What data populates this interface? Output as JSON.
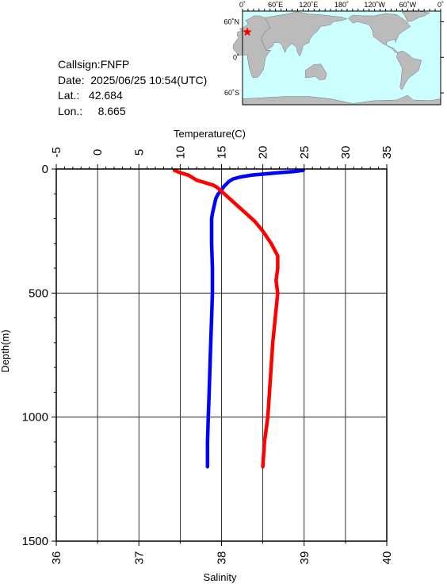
{
  "info": {
    "callsign_line": "Callsign:FNFP",
    "date_line": "Date:  2025/06/25 10:54(UTC)",
    "lat_line": "Lat.:   42.684",
    "lon_line": "Lon.:     8.665"
  },
  "map": {
    "lon_labels": [
      "0˚",
      "60˚E",
      "120˚E",
      "180˚",
      "120˚W",
      "60˚W",
      "0˚"
    ],
    "lat_labels": [
      "60˚N",
      "0˚",
      "60˚S"
    ],
    "marker": {
      "lon": 8.665,
      "lat": 42.684,
      "color": "#ff0000"
    },
    "ocean_color": "#ccffff",
    "land_color": "#bbbbbb"
  },
  "chart_data": {
    "type": "line",
    "title": "",
    "xlabel_top": "Temperature(C)",
    "xlabel_bottom": "Salinity",
    "ylabel": "Depth(m)",
    "temperature_ticks": [
      "-5",
      "0",
      "5",
      "10",
      "15",
      "20",
      "25",
      "30",
      "35"
    ],
    "salinity_ticks": [
      "36",
      "37",
      "38",
      "39",
      "40"
    ],
    "depth_ticks": [
      "0",
      "500",
      "1000",
      "1500"
    ],
    "temperature_range": [
      -5,
      35
    ],
    "salinity_range": [
      36,
      40
    ],
    "depth_range": [
      0,
      1500
    ],
    "grid": true,
    "series": [
      {
        "name": "Temperature",
        "color": "#0000ff",
        "axis": "temperature",
        "points": [
          [
            24.9,
            5
          ],
          [
            23.8,
            10
          ],
          [
            21.8,
            15
          ],
          [
            20.2,
            20
          ],
          [
            18.6,
            25
          ],
          [
            17.3,
            32
          ],
          [
            16.4,
            40
          ],
          [
            15.9,
            50
          ],
          [
            15.6,
            60
          ],
          [
            15.3,
            70
          ],
          [
            15.1,
            80
          ],
          [
            14.9,
            90
          ],
          [
            14.6,
            100
          ],
          [
            14.3,
            120
          ],
          [
            14.1,
            150
          ],
          [
            13.9,
            180
          ],
          [
            13.8,
            200
          ],
          [
            13.8,
            250
          ],
          [
            13.8,
            300
          ],
          [
            13.9,
            400
          ],
          [
            13.9,
            500
          ],
          [
            13.8,
            600
          ],
          [
            13.7,
            700
          ],
          [
            13.6,
            800
          ],
          [
            13.5,
            900
          ],
          [
            13.4,
            1000
          ],
          [
            13.3,
            1100
          ],
          [
            13.3,
            1200
          ]
        ]
      },
      {
        "name": "Salinity",
        "color": "#ff0000",
        "axis": "salinity",
        "points": [
          [
            37.43,
            5
          ],
          [
            37.5,
            15
          ],
          [
            37.6,
            25
          ],
          [
            37.65,
            35
          ],
          [
            37.7,
            45
          ],
          [
            37.8,
            55
          ],
          [
            37.9,
            65
          ],
          [
            37.95,
            75
          ],
          [
            38.0,
            90
          ],
          [
            38.1,
            120
          ],
          [
            38.2,
            150
          ],
          [
            38.3,
            180
          ],
          [
            38.4,
            210
          ],
          [
            38.5,
            250
          ],
          [
            38.6,
            300
          ],
          [
            38.68,
            350
          ],
          [
            38.68,
            400
          ],
          [
            38.66,
            450
          ],
          [
            38.68,
            500
          ],
          [
            38.65,
            600
          ],
          [
            38.62,
            700
          ],
          [
            38.6,
            800
          ],
          [
            38.58,
            900
          ],
          [
            38.56,
            1000
          ],
          [
            38.52,
            1100
          ],
          [
            38.5,
            1200
          ]
        ]
      }
    ]
  }
}
